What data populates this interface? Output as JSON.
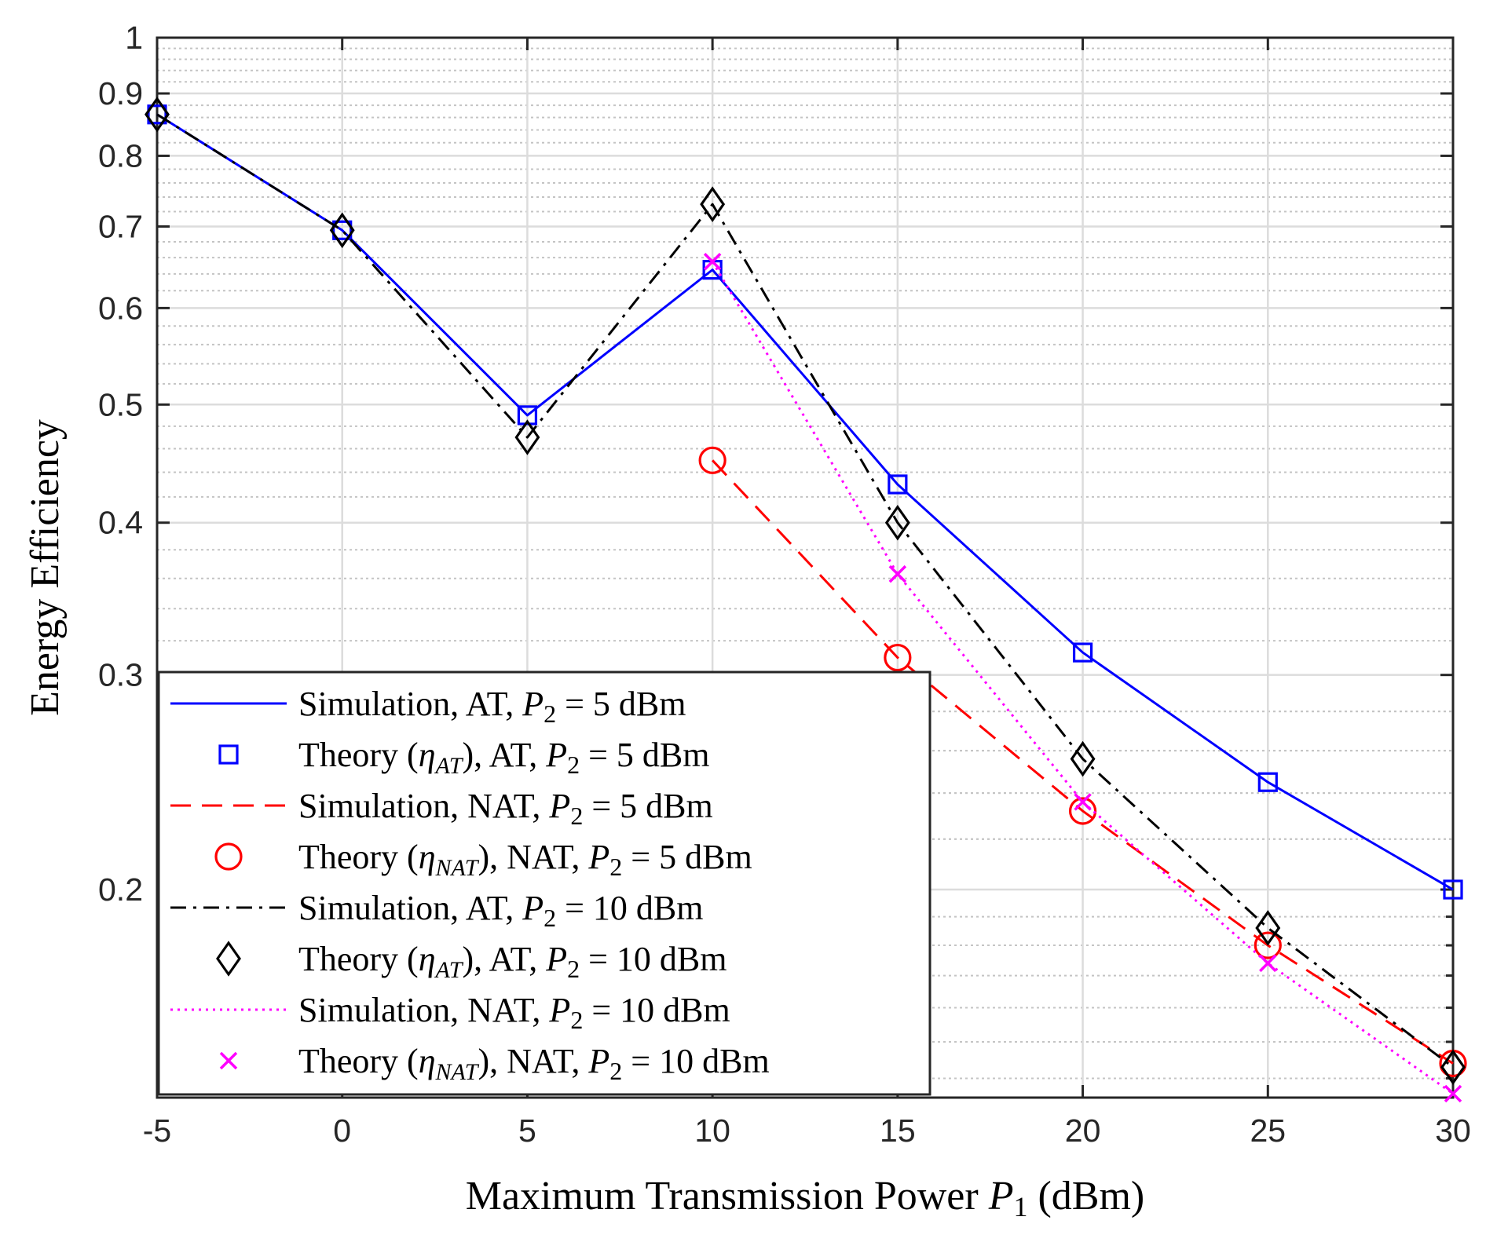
{
  "chart_data": {
    "type": "line",
    "title": "",
    "xlabel": {
      "text": "Maximum Transmission Power ",
      "symbol": "P",
      "subscript": "1",
      "suffix": " (dBm)"
    },
    "ylabel": "Energy Efficiency",
    "x_ticks": [
      "-5",
      "0",
      "5",
      "10",
      "15",
      "20",
      "25",
      "30"
    ],
    "y_ticks": [
      {
        "value": 0.2,
        "label": "0.2"
      },
      {
        "value": 0.3,
        "label": "0.3"
      },
      {
        "value": 0.4,
        "label": "0.4"
      },
      {
        "value": 0.5,
        "label": "0.5"
      },
      {
        "value": 0.6,
        "label": "0.6"
      },
      {
        "value": 0.7,
        "label": "0.7"
      },
      {
        "value": 0.8,
        "label": "0.8"
      },
      {
        "value": 0.9,
        "label": "0.9"
      },
      {
        "value": 1.0,
        "label": "1"
      }
    ],
    "y_scale": "log",
    "xlim": [
      -5,
      30
    ],
    "ylim": [
      0.135,
      1.0
    ],
    "grid": true,
    "minor_grid": true,
    "legend_position": "bottom-left",
    "series": [
      {
        "name": "Simulation, AT, P2 = 5 dBm",
        "label_parts": [
          "Simulation, AT, ",
          "P",
          "2",
          " = 5 dBm"
        ],
        "style": "solid",
        "marker": "none",
        "color": "#0000ff",
        "x": [
          -5,
          0,
          5,
          10,
          15,
          20,
          25,
          30
        ],
        "y": [
          0.865,
          0.695,
          0.49,
          0.645,
          0.43,
          0.313,
          0.245,
          0.2
        ]
      },
      {
        "name": "Theory (ηAT), AT, P2 = 5 dBm",
        "label_parts": [
          "Theory (",
          "η",
          "AT",
          "), AT, ",
          "P",
          "2",
          " = 5 dBm"
        ],
        "style": "none",
        "marker": "square",
        "color": "#0000ff",
        "x": [
          -5,
          0,
          5,
          10,
          15,
          20,
          25,
          30
        ],
        "y": [
          0.865,
          0.695,
          0.49,
          0.645,
          0.43,
          0.313,
          0.245,
          0.2
        ]
      },
      {
        "name": "Simulation, NAT, P2 = 5 dBm",
        "label_parts": [
          "Simulation, NAT, ",
          "P",
          "2",
          " = 5 dBm"
        ],
        "style": "dashed",
        "marker": "none",
        "color": "#ff0000",
        "x": [
          10,
          15,
          20,
          25,
          30
        ],
        "y": [
          0.45,
          0.31,
          0.232,
          0.18,
          0.144
        ]
      },
      {
        "name": "Theory (ηNAT), NAT, P2 = 5 dBm",
        "label_parts": [
          "Theory (",
          "η",
          "NAT",
          "), NAT, ",
          "P",
          "2",
          " = 5 dBm"
        ],
        "style": "none",
        "marker": "circle",
        "color": "#ff0000",
        "x": [
          10,
          15,
          20,
          25,
          30
        ],
        "y": [
          0.45,
          0.31,
          0.232,
          0.18,
          0.144
        ]
      },
      {
        "name": "Simulation, AT, P2 = 10 dBm",
        "label_parts": [
          "Simulation, AT, ",
          "P",
          "2",
          " = 10 dBm"
        ],
        "style": "dashdot",
        "marker": "none",
        "color": "#000000",
        "x": [
          -5,
          0,
          5,
          10,
          15,
          20,
          25,
          30
        ],
        "y": [
          0.865,
          0.695,
          0.47,
          0.73,
          0.4,
          0.256,
          0.186,
          0.143
        ]
      },
      {
        "name": "Theory (ηAT), AT, P2 = 10 dBm",
        "label_parts": [
          "Theory (",
          "η",
          "AT",
          "), AT, ",
          "P",
          "2",
          " = 10 dBm"
        ],
        "style": "none",
        "marker": "diamond",
        "color": "#000000",
        "x": [
          -5,
          0,
          5,
          10,
          15,
          20,
          25,
          30
        ],
        "y": [
          0.865,
          0.695,
          0.47,
          0.73,
          0.4,
          0.256,
          0.186,
          0.143
        ]
      },
      {
        "name": "Simulation, NAT, P2 = 10 dBm",
        "label_parts": [
          "Simulation, NAT, ",
          "P",
          "2",
          " = 10 dBm"
        ],
        "style": "dotted",
        "marker": "none",
        "color": "#ff00ff",
        "x": [
          10,
          15,
          20,
          25,
          30
        ],
        "y": [
          0.655,
          0.363,
          0.236,
          0.174,
          0.136
        ]
      },
      {
        "name": "Theory (ηNAT), NAT, P2 = 10 dBm",
        "label_parts": [
          "Theory (",
          "η",
          "NAT",
          "), NAT, ",
          "P",
          "2",
          " = 10 dBm"
        ],
        "style": "none",
        "marker": "x",
        "color": "#ff00ff",
        "x": [
          10,
          15,
          20,
          25,
          30
        ],
        "y": [
          0.655,
          0.363,
          0.236,
          0.174,
          0.136
        ]
      }
    ]
  }
}
